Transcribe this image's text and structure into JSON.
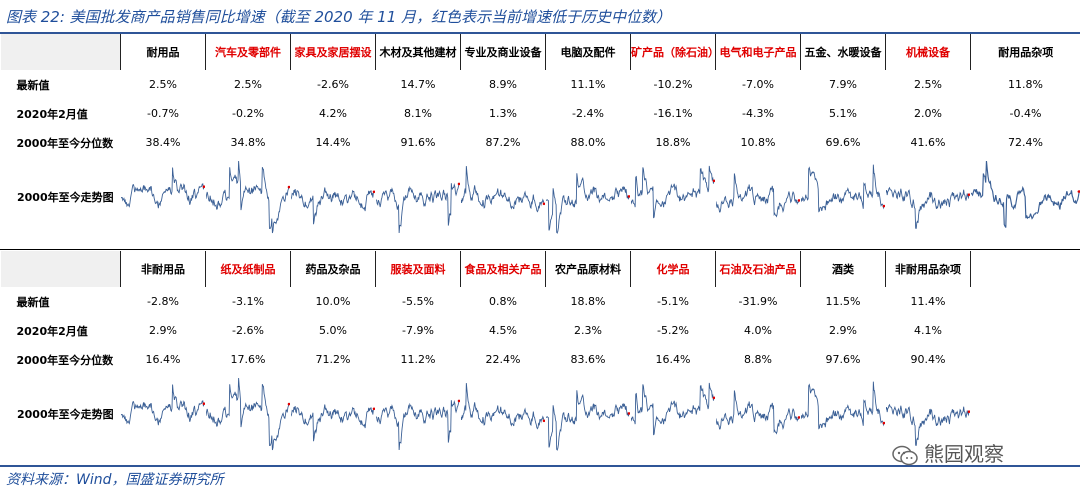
{
  "title": "图表 22:  美国批发商产品销售同比增速（截至 2020 年 11 月，红色表示当前增速低于历史中位数）",
  "source": "资料来源：Wind，国盛证券研究所",
  "watermark": "熊园观察",
  "colors": {
    "title": "#1f4e9b",
    "red_header": "#e00000",
    "spark": "#3a5f95",
    "spark_end": "#e00000"
  },
  "row_labels": {
    "latest": "最新值",
    "feb2020": "2020年2月值",
    "percentile": "2000年至今分位数",
    "trend": "2000年至今走势图"
  },
  "table1": {
    "columns": [
      {
        "name": "耐用品",
        "red": false,
        "latest": "2.5%",
        "feb2020": "-0.7%",
        "percentile": "38.4%"
      },
      {
        "name": "汽车及零部件",
        "red": true,
        "latest": "2.5%",
        "feb2020": "-0.2%",
        "percentile": "34.8%"
      },
      {
        "name": "家具及家居摆设",
        "red": true,
        "latest": "-2.6%",
        "feb2020": "4.2%",
        "percentile": "14.4%"
      },
      {
        "name": "木材及其他建材",
        "red": false,
        "latest": "14.7%",
        "feb2020": "8.1%",
        "percentile": "91.6%"
      },
      {
        "name": "专业及商业设备",
        "red": false,
        "latest": "8.9%",
        "feb2020": "1.3%",
        "percentile": "87.2%"
      },
      {
        "name": "电脑及配件",
        "red": false,
        "latest": "11.1%",
        "feb2020": "-2.4%",
        "percentile": "88.0%"
      },
      {
        "name": "矿产品（除石油）",
        "red": true,
        "latest": "-10.2%",
        "feb2020": "-16.1%",
        "percentile": "18.8%"
      },
      {
        "name": "电气和电子产品",
        "red": true,
        "latest": "-7.0%",
        "feb2020": "-4.3%",
        "percentile": "10.8%"
      },
      {
        "name": "五金、水暖设备",
        "red": false,
        "latest": "7.9%",
        "feb2020": "5.1%",
        "percentile": "69.6%"
      },
      {
        "name": "机械设备",
        "red": true,
        "latest": "2.5%",
        "feb2020": "2.0%",
        "percentile": "41.6%"
      },
      {
        "name": "耐用品杂项",
        "red": false,
        "latest": "11.8%",
        "feb2020": "-0.4%",
        "percentile": "72.4%"
      }
    ]
  },
  "table2": {
    "columns": [
      {
        "name": "非耐用品",
        "red": false,
        "latest": "-2.8%",
        "feb2020": "2.9%",
        "percentile": "16.4%"
      },
      {
        "name": "纸及纸制品",
        "red": true,
        "latest": "-3.1%",
        "feb2020": "-2.6%",
        "percentile": "17.6%"
      },
      {
        "name": "药品及杂品",
        "red": false,
        "latest": "10.0%",
        "feb2020": "5.0%",
        "percentile": "71.2%"
      },
      {
        "name": "服装及面料",
        "red": true,
        "latest": "-5.5%",
        "feb2020": "-7.9%",
        "percentile": "11.2%"
      },
      {
        "name": "食品及相关产品",
        "red": true,
        "latest": "0.8%",
        "feb2020": "4.5%",
        "percentile": "22.4%"
      },
      {
        "name": "农产品原材料",
        "red": false,
        "latest": "18.8%",
        "feb2020": "2.3%",
        "percentile": "83.6%"
      },
      {
        "name": "化学品",
        "red": true,
        "latest": "-5.1%",
        "feb2020": "-5.2%",
        "percentile": "16.4%"
      },
      {
        "name": "石油及石油产品",
        "red": true,
        "latest": "-31.9%",
        "feb2020": "4.0%",
        "percentile": "8.8%"
      },
      {
        "name": "酒类",
        "red": false,
        "latest": "11.5%",
        "feb2020": "2.9%",
        "percentile": "97.6%"
      },
      {
        "name": "非耐用品杂项",
        "red": false,
        "latest": "11.4%",
        "feb2020": "4.1%",
        "percentile": "90.4%"
      },
      {
        "name": "",
        "red": false,
        "latest": "",
        "feb2020": "",
        "percentile": ""
      }
    ]
  }
}
